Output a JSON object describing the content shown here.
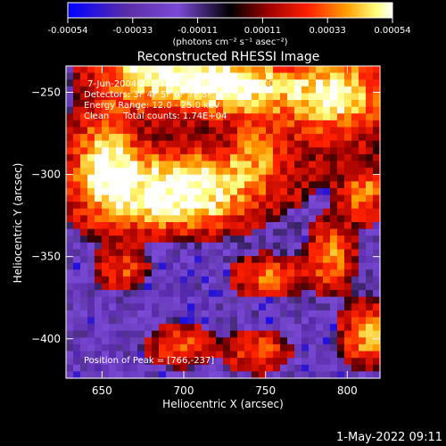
{
  "chart_data": {
    "type": "heatmap",
    "title": "Reconstructed RHESSI Image",
    "xlabel": "Heliocentric X (arcsec)",
    "ylabel": "Heliocentric Y (arcsec)",
    "xlim": [
      628,
      820
    ],
    "ylim": [
      -424,
      -234
    ],
    "x_ticks": [
      650,
      700,
      750,
      800
    ],
    "y_ticks": [
      -250,
      -300,
      -350,
      -400
    ],
    "colorbar": {
      "range": [
        -0.00054,
        0.00054
      ],
      "ticks": [
        "-0.00054",
        "-0.00033",
        "-0.00011",
        "0.00011",
        "0.00033",
        "0.00054"
      ],
      "units": "(photons cm⁻² s⁻¹ asec⁻²)",
      "colors": [
        "#0000ff",
        "#5a2ca8",
        "#7a4ad6",
        "#000000",
        "#a00000",
        "#ff2000",
        "#ffa000",
        "#ffff80",
        "#ffffff"
      ]
    },
    "annotations": {
      "time": "7-Jun-2004 23:31:52.000 to 23:37:52.000",
      "detectors": "Detectors: 3F 4F 5F 6F 7F 8F, Att 0",
      "energy": "Energy Range: 12.0 - 25.0 keV",
      "clean": "Clean     Total counts: 1.74E+04",
      "peak": "Position of Peak = [766,-237]"
    },
    "peak": [
      766,
      -237
    ],
    "timestamp": "1-May-2022 09:11",
    "grid_rows": 46,
    "grid_cols": 44,
    "field_sources": [
      {
        "x": 680,
        "y": -238,
        "sx": 22,
        "sy": 14,
        "a": 1.0
      },
      {
        "x": 727,
        "y": -246,
        "sx": 22,
        "sy": 13,
        "a": 1.1
      },
      {
        "x": 790,
        "y": -252,
        "sx": 26,
        "sy": 18,
        "a": 1.0
      },
      {
        "x": 652,
        "y": -292,
        "sx": 14,
        "sy": 22,
        "a": 0.9
      },
      {
        "x": 705,
        "y": -302,
        "sx": 38,
        "sy": 12,
        "a": 1.0
      },
      {
        "x": 694,
        "y": -322,
        "sx": 30,
        "sy": 10,
        "a": 0.8
      },
      {
        "x": 745,
        "y": -283,
        "sx": 10,
        "sy": 10,
        "a": 0.5
      },
      {
        "x": 810,
        "y": -312,
        "sx": 9,
        "sy": 11,
        "a": 0.7
      },
      {
        "x": 790,
        "y": -350,
        "sx": 9,
        "sy": 13,
        "a": 0.7
      },
      {
        "x": 752,
        "y": -362,
        "sx": 14,
        "sy": 8,
        "a": 0.6
      },
      {
        "x": 662,
        "y": -358,
        "sx": 10,
        "sy": 8,
        "a": 0.5
      },
      {
        "x": 698,
        "y": -404,
        "sx": 12,
        "sy": 8,
        "a": 0.6
      },
      {
        "x": 745,
        "y": -408,
        "sx": 12,
        "sy": 8,
        "a": 0.6
      },
      {
        "x": 812,
        "y": -398,
        "sx": 10,
        "sy": 12,
        "a": 0.8
      }
    ]
  }
}
